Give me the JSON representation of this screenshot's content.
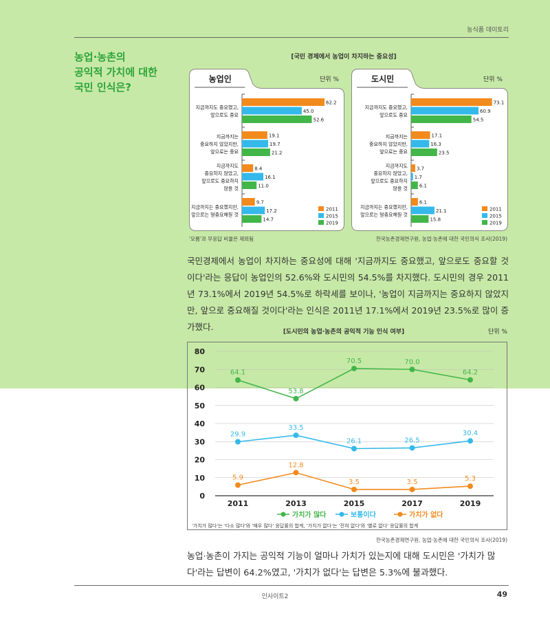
{
  "header": {
    "section": "농식품 데이토리"
  },
  "headline": [
    "농업·농촌의",
    "공익적 가치에 대한",
    "국민 인식은?"
  ],
  "chart1_title": "[국민 경제에서 농업이 차지하는 중요성]",
  "chart1_note": "'모름'과 무응답 비율은 제외됨",
  "chart1_source": "한국농촌경제연구원, 농업·농촌에 대한 국민의식 조사(2019)",
  "paragraph1": "국민경제에서 농업이 차지하는 중요성에 대해 '지금까지도 중요했고, 앞으로도 중요할 것이다'라는 응답이 농업인의 52.6%와 도시민의 54.5%를 차지했다. 도시민의 경우 2011년 73.1%에서 2019년 54.5%로 하락세를 보이나, '농업이 지금까지는 중요하지 않았지만, 앞으로 중요해질 것이다'라는 인식은 2011년 17.1%에서 2019년 23.5%로 많이 증가했다.",
  "chart3_title": "[도시민의 농업·농촌의 공익적 기능 인식 여부]",
  "chart3_unit": "단위 %",
  "chart3_note": "'가치가 많다'는 '다소 많다'와 '매우 많다' 응답률의 합계, '가치가 없다'는 '전혀 없다'와 '별로 없다' 응답률의 합계",
  "chart3_source": "한국농촌경제연구원, 농업·농촌에 대한 국민의식 조사(2019)",
  "paragraph2": "농업·농촌이 가지는 공익적 기능이 얼마나 가치가 있는지에 대해 도시민은 '가치가 많다'라는 답변이 64.2%였고, '가치가 없다'는 답변은 5.3%에 불과했다.",
  "footer": {
    "magazine": "인사이트2",
    "page": "49"
  },
  "colors": {
    "background": "#c7e9a7",
    "accent": "#2ea43a",
    "orange": "#f28a1c",
    "blue": "#34b9ea",
    "green": "#43b649"
  },
  "chart_data": [
    {
      "type": "bar",
      "orientation": "horizontal",
      "title": "농업인",
      "unit": "단위 %",
      "categories": [
        [
          "지금까지도 중요했고,",
          "앞으로도 중요"
        ],
        [
          "지금까지는",
          "중요하지 않았지만,",
          "앞으로는 중요"
        ],
        [
          "지금까지도",
          "중요하지 않았고,",
          "앞으로도 중요하지",
          "않을 것"
        ],
        [
          "지금까지는 중요했지만,",
          "앞으로는 덜중요해질 것"
        ]
      ],
      "series": [
        {
          "name": "2011",
          "color": "#f28a1c",
          "values": [
            62.2,
            19.1,
            8.4,
            9.7
          ]
        },
        {
          "name": "2015",
          "color": "#34b9ea",
          "values": [
            45.0,
            19.7,
            16.1,
            17.2
          ]
        },
        {
          "name": "2019",
          "color": "#43b649",
          "values": [
            52.6,
            21.2,
            11.0,
            14.7
          ]
        }
      ],
      "legend": "bottom-right"
    },
    {
      "type": "bar",
      "orientation": "horizontal",
      "title": "도시민",
      "unit": "단위 %",
      "categories": [
        [
          "지금까지도 중요했고,",
          "앞으로도 중요"
        ],
        [
          "지금까지는",
          "중요하지 않았지만,",
          "앞으로는 중요"
        ],
        [
          "지금까지도",
          "중요하지 않았고,",
          "앞으로도 중요하지",
          "않을 것"
        ],
        [
          "지금까지는 중요했지만,",
          "앞으로는 덜중요해질 것"
        ]
      ],
      "series": [
        {
          "name": "2011",
          "color": "#f28a1c",
          "values": [
            73.1,
            17.1,
            3.7,
            6.1
          ]
        },
        {
          "name": "2015",
          "color": "#34b9ea",
          "values": [
            60.9,
            16.3,
            1.7,
            21.1
          ]
        },
        {
          "name": "2019",
          "color": "#43b649",
          "values": [
            54.5,
            23.5,
            6.1,
            15.8
          ]
        }
      ],
      "legend": "bottom-right"
    },
    {
      "type": "line",
      "x": [
        "2011",
        "2013",
        "2015",
        "2017",
        "2019"
      ],
      "ylim": [
        0,
        80
      ],
      "yticks": [
        0,
        10,
        20,
        30,
        40,
        50,
        60,
        70,
        80
      ],
      "grid": true,
      "series": [
        {
          "name": "가치가 많다",
          "color": "#43b649",
          "values": [
            64.1,
            53.8,
            70.5,
            70.0,
            64.2
          ]
        },
        {
          "name": "보통이다",
          "color": "#34b9ea",
          "values": [
            29.9,
            33.5,
            26.1,
            26.5,
            30.4
          ]
        },
        {
          "name": "가치가 없다",
          "color": "#f28a1c",
          "values": [
            5.9,
            12.8,
            3.5,
            3.5,
            5.3
          ]
        }
      ],
      "legend": "bottom"
    }
  ]
}
